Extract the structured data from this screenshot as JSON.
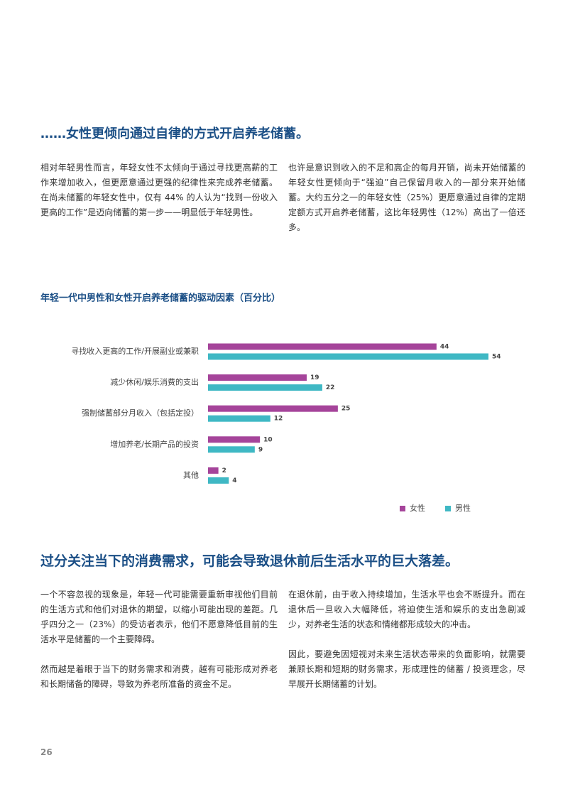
{
  "section1": {
    "heading": "……女性更倾向通过自律的方式开启养老储蓄。",
    "left": [
      "相对年轻男性而言，年轻女性不太倾向于通过寻找更高薪的工作来增加收入，但更愿意通过更强的纪律性来完成养老储蓄。在尚未储蓄的年轻女性中，仅有 44% 的人认为“找到一份收入更高的工作”是迈向储蓄的第一步——明显低于年轻男性。"
    ],
    "right": [
      "也许是意识到收入的不足和高企的每月开销，尚未开始储蓄的年轻女性更倾向于“强迫”自己保留月收入的一部分来开始储蓄。大约五分之一的年轻女性（25%）更愿意通过自律的定期定额方式开启养老储蓄，这比年轻男性（12%）高出了一倍还多。"
    ]
  },
  "chart_data": {
    "type": "barh",
    "title": "年轻一代中男性和女性开启养老储蓄的驱动因素（百分比）",
    "categories": [
      "寻找收入更高的工作/开展副业或兼职",
      "减少休闲/娱乐消费的支出",
      "强制储蓄部分月收入（包括定投）",
      "增加养老/长期产品的投资",
      "其他"
    ],
    "series": [
      {
        "name": "女性",
        "color": "#a5449a",
        "values": [
          44,
          19,
          25,
          10,
          2
        ]
      },
      {
        "name": "男性",
        "color": "#3fb8c4",
        "values": [
          54,
          22,
          12,
          9,
          4
        ]
      }
    ],
    "xlim": [
      0,
      54
    ],
    "legend": "bottom-right"
  },
  "section2": {
    "heading": "过分关注当下的消费需求，可能会导致退休前后生活水平的巨大落差。",
    "left": [
      "一个不容忽视的现象是，年轻一代可能需要重新审视他们目前的生活方式和他们对退休的期望，以缩小可能出现的差距。几乎四分之一（23%）的受访者表示，他们不愿意降低目前的生活水平是储蓄的一个主要障碍。",
      "然而越是着眼于当下的财务需求和消费，越有可能形成对养老和长期储备的障碍，导致为养老所准备的资金不足。"
    ],
    "right": [
      "在退休前，由于收入持续增加，生活水平也会不断提升。而在退休后一旦收入大幅降低，将迫使生活和娱乐的支出急剧减少，对养老生活的状态和情绪都形成较大的冲击。",
      "因此，要避免因短视对未来生活状态带来的负面影响，就需要兼顾长期和短期的财务需求，形成理性的储蓄 / 投资理念，尽早展开长期储蓄的计划。"
    ]
  },
  "page_number": "26"
}
